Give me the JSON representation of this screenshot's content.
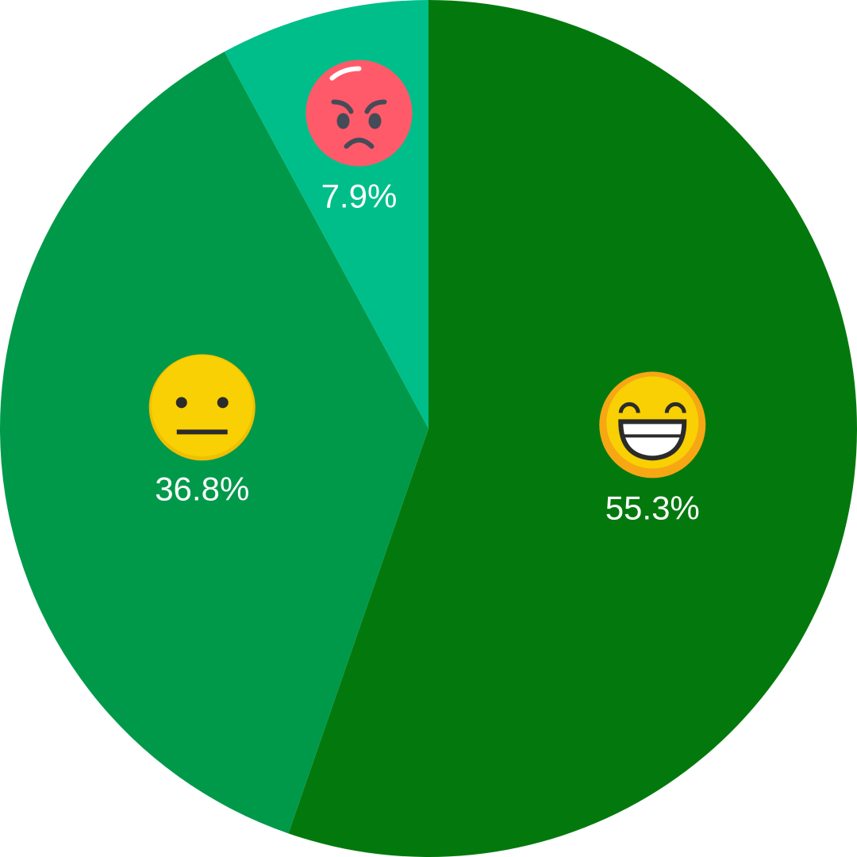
{
  "chart_data": {
    "type": "pie",
    "values": [
      55.3,
      36.8,
      7.9
    ],
    "value_labels": [
      "55.3%",
      "36.8%",
      "7.9%"
    ],
    "colors": [
      "#03790d",
      "#00994a",
      "#00be8a"
    ]
  }
}
